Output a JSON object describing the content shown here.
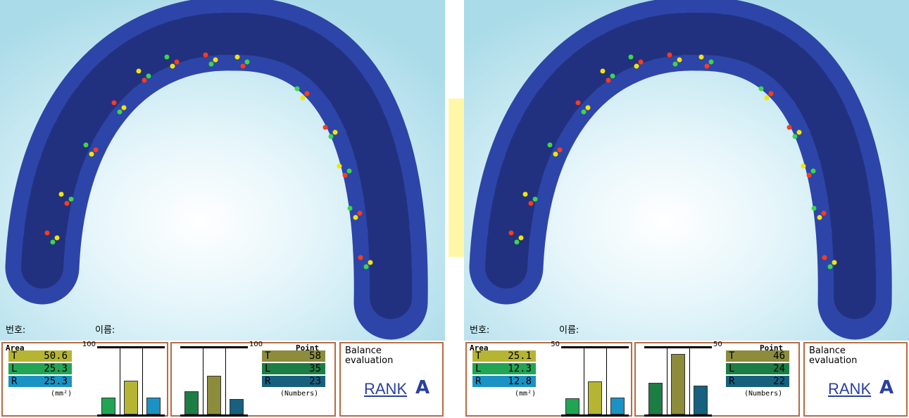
{
  "panels": [
    {
      "number_label": "번호:",
      "name_label": "이름:",
      "area": {
        "title": "Area",
        "scale_max": 100,
        "unit": "(mm²)",
        "rows": [
          {
            "key": "T",
            "value": 50.6,
            "color": "#b5b533"
          },
          {
            "key": "L",
            "value": 25.3,
            "color": "#22a455"
          },
          {
            "key": "R",
            "value": 25.3,
            "color": "#1a93c4"
          }
        ]
      },
      "points": {
        "title": "Point",
        "scale_max": 100,
        "unit": "(Numbers)",
        "rows": [
          {
            "key": "T",
            "value": 58,
            "color": "#8c8c3c"
          },
          {
            "key": "L",
            "value": 35,
            "color": "#1c7d45"
          },
          {
            "key": "R",
            "value": 23,
            "color": "#17607e"
          }
        ]
      },
      "balance": {
        "title": "Balance evaluation",
        "rank_label": "RANK",
        "rank": "A"
      }
    },
    {
      "number_label": "번호:",
      "name_label": "이름:",
      "area": {
        "title": "Area",
        "scale_max": 50,
        "unit": "(mm²)",
        "rows": [
          {
            "key": "T",
            "value": 25.1,
            "color": "#b5b533"
          },
          {
            "key": "L",
            "value": 12.3,
            "color": "#22a455"
          },
          {
            "key": "R",
            "value": 12.8,
            "color": "#1a93c4"
          }
        ]
      },
      "points": {
        "title": "Point",
        "scale_max": 50,
        "unit": "(Numbers)",
        "rows": [
          {
            "key": "T",
            "value": 46,
            "color": "#8c8c3c"
          },
          {
            "key": "L",
            "value": 24,
            "color": "#1c7d45"
          },
          {
            "key": "R",
            "value": 22,
            "color": "#17607e"
          }
        ]
      },
      "balance": {
        "title": "Balance evaluation",
        "rank_label": "RANK",
        "rank": "A"
      }
    }
  ]
}
